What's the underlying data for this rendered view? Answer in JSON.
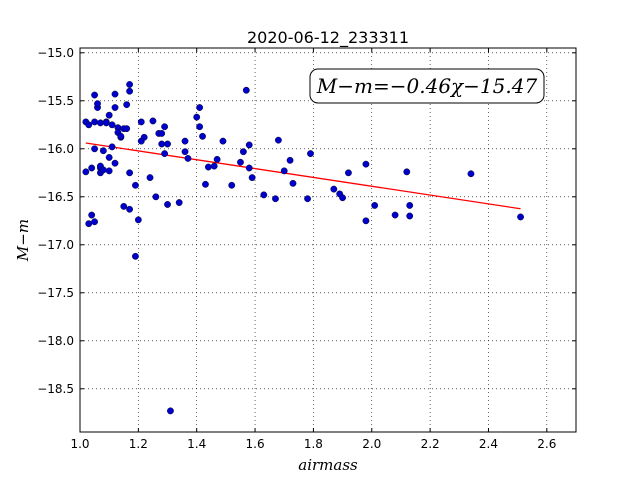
{
  "chart_data": {
    "type": "scatter",
    "title": "2020-06-12_233311",
    "xlabel": "airmass",
    "ylabel": "M−m",
    "xlim": [
      1.0,
      2.7
    ],
    "ylim": [
      -18.95,
      -14.95
    ],
    "y_inverted": true,
    "grid": true,
    "x_ticks": [
      1.0,
      1.2,
      1.4,
      1.6,
      1.8,
      2.0,
      2.2,
      2.4,
      2.6
    ],
    "x_tick_labels": [
      "1.0",
      "1.2",
      "1.4",
      "1.6",
      "1.8",
      "2.0",
      "2.2",
      "2.4",
      "2.6"
    ],
    "y_ticks": [
      -15.0,
      -15.5,
      -16.0,
      -16.5,
      -17.0,
      -17.5,
      -18.0,
      -18.5
    ],
    "y_tick_labels": [
      "−15.0",
      "−15.5",
      "−16.0",
      "−16.5",
      "−17.0",
      "−17.5",
      "−18.0",
      "−18.5"
    ],
    "annotation": "M−m=−0.46χ−15.47",
    "fit": {
      "slope": -0.46,
      "intercept": -15.47,
      "x_range": [
        1.02,
        2.51
      ],
      "color": "#ff0000"
    },
    "point_color": "#0000cc",
    "points": [
      [
        1.02,
        -15.72
      ],
      [
        1.02,
        -16.24
      ],
      [
        1.03,
        -15.75
      ],
      [
        1.03,
        -16.78
      ],
      [
        1.04,
        -16.69
      ],
      [
        1.04,
        -16.2
      ],
      [
        1.05,
        -15.44
      ],
      [
        1.05,
        -16.76
      ],
      [
        1.05,
        -16.0
      ],
      [
        1.05,
        -15.72
      ],
      [
        1.06,
        -15.57
      ],
      [
        1.06,
        -15.53
      ],
      [
        1.07,
        -15.73
      ],
      [
        1.07,
        -16.25
      ],
      [
        1.07,
        -16.2
      ],
      [
        1.07,
        -16.18
      ],
      [
        1.08,
        -16.02
      ],
      [
        1.08,
        -16.22
      ],
      [
        1.09,
        -15.72
      ],
      [
        1.09,
        -15.73
      ],
      [
        1.1,
        -15.65
      ],
      [
        1.1,
        -16.09
      ],
      [
        1.1,
        -16.23
      ],
      [
        1.11,
        -15.75
      ],
      [
        1.11,
        -15.98
      ],
      [
        1.12,
        -15.57
      ],
      [
        1.12,
        -16.15
      ],
      [
        1.12,
        -15.43
      ],
      [
        1.13,
        -15.78
      ],
      [
        1.13,
        -15.83
      ],
      [
        1.14,
        -15.88
      ],
      [
        1.14,
        -15.87
      ],
      [
        1.15,
        -15.79
      ],
      [
        1.15,
        -16.6
      ],
      [
        1.16,
        -15.54
      ],
      [
        1.16,
        -15.79
      ],
      [
        1.17,
        -15.33
      ],
      [
        1.17,
        -15.4
      ],
      [
        1.17,
        -16.25
      ],
      [
        1.17,
        -16.63
      ],
      [
        1.19,
        -16.38
      ],
      [
        1.19,
        -17.12
      ],
      [
        1.2,
        -16.74
      ],
      [
        1.21,
        -15.72
      ],
      [
        1.21,
        -15.92
      ],
      [
        1.22,
        -15.88
      ],
      [
        1.24,
        -16.3
      ],
      [
        1.25,
        -15.71
      ],
      [
        1.26,
        -16.5
      ],
      [
        1.27,
        -15.84
      ],
      [
        1.28,
        -15.84
      ],
      [
        1.28,
        -15.95
      ],
      [
        1.29,
        -16.05
      ],
      [
        1.29,
        -15.77
      ],
      [
        1.3,
        -16.58
      ],
      [
        1.3,
        -15.95
      ],
      [
        1.31,
        -18.73
      ],
      [
        1.34,
        -16.56
      ],
      [
        1.36,
        -16.03
      ],
      [
        1.36,
        -15.92
      ],
      [
        1.37,
        -16.1
      ],
      [
        1.4,
        -15.67
      ],
      [
        1.41,
        -15.77
      ],
      [
        1.41,
        -15.57
      ],
      [
        1.42,
        -15.87
      ],
      [
        1.43,
        -16.37
      ],
      [
        1.44,
        -16.19
      ],
      [
        1.46,
        -16.18
      ],
      [
        1.47,
        -16.11
      ],
      [
        1.49,
        -15.92
      ],
      [
        1.52,
        -16.38
      ],
      [
        1.55,
        -16.14
      ],
      [
        1.56,
        -16.03
      ],
      [
        1.57,
        -15.39
      ],
      [
        1.58,
        -16.2
      ],
      [
        1.58,
        -15.96
      ],
      [
        1.59,
        -16.3
      ],
      [
        1.63,
        -16.48
      ],
      [
        1.67,
        -16.52
      ],
      [
        1.68,
        -15.91
      ],
      [
        1.7,
        -16.23
      ],
      [
        1.72,
        -16.12
      ],
      [
        1.73,
        -16.36
      ],
      [
        1.78,
        -16.52
      ],
      [
        1.79,
        -16.05
      ],
      [
        1.87,
        -16.42
      ],
      [
        1.89,
        -16.47
      ],
      [
        1.9,
        -16.51
      ],
      [
        1.92,
        -16.25
      ],
      [
        1.98,
        -16.16
      ],
      [
        1.98,
        -16.75
      ],
      [
        2.01,
        -16.59
      ],
      [
        2.08,
        -16.69
      ],
      [
        2.12,
        -16.24
      ],
      [
        2.13,
        -16.7
      ],
      [
        2.13,
        -16.59
      ],
      [
        2.34,
        -16.26
      ],
      [
        2.51,
        -16.71
      ]
    ]
  }
}
